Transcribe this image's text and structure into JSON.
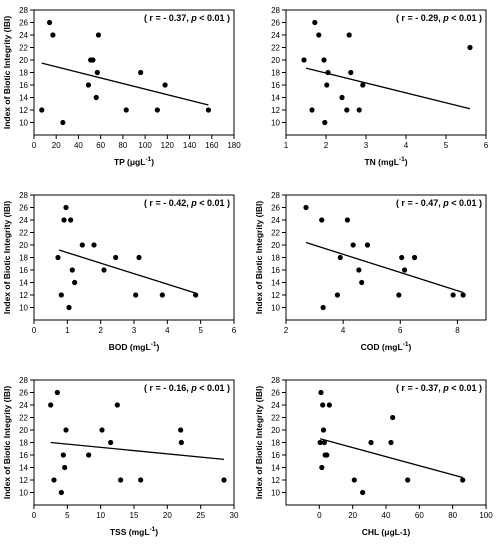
{
  "chart_data": [
    {
      "type": "scatter",
      "xlabel": "TP (μgL",
      "xlabel_sup": "-1",
      "xlabel_tail": ")",
      "ylabel": "Index of Biotic Integrity (IBI)",
      "annotation": {
        "pre": "( r = - 0.37, ",
        "p": "p",
        "post": " < 0.01 )"
      },
      "xlim": [
        0,
        180
      ],
      "ylim": [
        8,
        28
      ],
      "xticks": [
        0,
        20,
        40,
        60,
        80,
        100,
        120,
        140,
        160,
        180
      ],
      "yticks": [
        10,
        12,
        14,
        16,
        18,
        20,
        22,
        24,
        26,
        28
      ],
      "x": [
        7,
        14,
        17,
        26,
        49,
        51,
        53,
        56,
        57,
        58,
        83,
        96,
        111,
        118,
        157
      ],
      "y": [
        12,
        26,
        24,
        10,
        16,
        20,
        20,
        14,
        18,
        24,
        12,
        18,
        12,
        16,
        12
      ],
      "trendline": {
        "x": [
          7,
          157
        ],
        "y": [
          19.5,
          12.8
        ]
      }
    },
    {
      "type": "scatter",
      "xlabel": "TN (mgL",
      "xlabel_sup": "-1",
      "xlabel_tail": ")",
      "ylabel": "",
      "annotation": {
        "pre": "( r = - 0.29, ",
        "p": "p",
        "post": " < 0.01 )"
      },
      "xlim": [
        1,
        6
      ],
      "ylim": [
        8,
        28
      ],
      "xticks": [
        1,
        2,
        3,
        4,
        5,
        6
      ],
      "yticks": [
        10,
        12,
        14,
        16,
        18,
        20,
        22,
        24,
        26,
        28
      ],
      "x": [
        1.45,
        1.65,
        1.72,
        1.82,
        1.95,
        1.97,
        2.02,
        2.05,
        2.4,
        2.52,
        2.58,
        2.62,
        2.83,
        2.92,
        5.6
      ],
      "y": [
        20,
        12,
        26,
        24,
        20,
        10,
        16,
        18,
        14,
        12,
        24,
        18,
        12,
        16,
        22
      ],
      "trendline": {
        "x": [
          1.5,
          5.6
        ],
        "y": [
          18.7,
          12.2
        ]
      }
    },
    {
      "type": "scatter",
      "xlabel": "BOD (mgL",
      "xlabel_sup": "-1",
      "xlabel_tail": ")",
      "ylabel": "Index of Biotic Integrity (IBI)",
      "annotation": {
        "pre": "( r = - 0.42, ",
        "p": "p",
        "post": " < 0.01 )"
      },
      "xlim": [
        0,
        6
      ],
      "ylim": [
        8,
        28
      ],
      "xticks": [
        0,
        1,
        2,
        3,
        4,
        5,
        6
      ],
      "yticks": [
        10,
        12,
        14,
        16,
        18,
        20,
        22,
        24,
        26,
        28
      ],
      "x": [
        0.72,
        0.82,
        0.9,
        0.96,
        1.05,
        1.1,
        1.15,
        1.22,
        1.45,
        1.8,
        2.1,
        2.45,
        3.05,
        3.15,
        3.85,
        4.85
      ],
      "y": [
        18,
        12,
        24,
        26,
        10,
        24,
        16,
        14,
        20,
        20,
        16,
        18,
        12,
        18,
        12,
        12
      ],
      "trendline": {
        "x": [
          0.75,
          4.85
        ],
        "y": [
          19.2,
          12.3
        ]
      }
    },
    {
      "type": "scatter",
      "xlabel": "COD (mgL",
      "xlabel_sup": "-1",
      "xlabel_tail": ")",
      "ylabel": "Index of Biotic Integrity (IBI)",
      "annotation": {
        "pre": "( r = - 0.47, ",
        "p": "p",
        "post": " < 0.01 )"
      },
      "xlim": [
        2,
        9
      ],
      "ylim": [
        8,
        28
      ],
      "xticks": [
        2,
        4,
        6,
        8
      ],
      "yticks": [
        10,
        12,
        14,
        16,
        18,
        20,
        22,
        24,
        26,
        28
      ],
      "x": [
        2.7,
        3.25,
        3.3,
        3.8,
        3.9,
        4.15,
        4.35,
        4.55,
        4.65,
        4.85,
        5.95,
        6.05,
        6.15,
        6.5,
        7.85,
        8.2
      ],
      "y": [
        26,
        24,
        10,
        12,
        18,
        24,
        20,
        16,
        14,
        20,
        12,
        18,
        16,
        18,
        12,
        12
      ],
      "trendline": {
        "x": [
          2.7,
          8.2
        ],
        "y": [
          20.4,
          12.4
        ]
      }
    },
    {
      "type": "scatter",
      "xlabel": "TSS (mgL",
      "xlabel_sup": "-1",
      "xlabel_tail": ")",
      "ylabel": "Index of Biotic Integrity (IBI)",
      "annotation": {
        "pre": "( r = - 0.16, ",
        "p": "p",
        "post": " < 0.01 )"
      },
      "xlim": [
        0,
        30
      ],
      "ylim": [
        8,
        28
      ],
      "xticks": [
        0,
        5,
        10,
        15,
        20,
        25,
        30
      ],
      "yticks": [
        10,
        12,
        14,
        16,
        18,
        20,
        22,
        24,
        26,
        28
      ],
      "x": [
        2.5,
        3.0,
        3.5,
        4.1,
        4.4,
        4.6,
        4.8,
        8.2,
        10.2,
        11.5,
        12.5,
        13.0,
        16.0,
        22.0,
        22.1,
        28.5
      ],
      "y": [
        24,
        12,
        26,
        10,
        16,
        14,
        20,
        16,
        20,
        18,
        24,
        12,
        12,
        20,
        18,
        12
      ],
      "trendline": {
        "x": [
          2.5,
          28.5
        ],
        "y": [
          18.0,
          15.3
        ]
      }
    },
    {
      "type": "scatter",
      "xlabel": "CHL (μgL-1)",
      "xlabel_sup": "",
      "xlabel_tail": "",
      "ylabel": "Index of Biotic Integrity (IBI)",
      "annotation": {
        "pre": "( r = - 0.37, ",
        "p": "p",
        "post": " < 0.01 )"
      },
      "xlim": [
        -20,
        100
      ],
      "ylim": [
        8,
        28
      ],
      "xticks": [
        0,
        20,
        40,
        60,
        80,
        100
      ],
      "yticks": [
        10,
        12,
        14,
        16,
        18,
        20,
        22,
        24,
        26,
        28
      ],
      "x": [
        0.5,
        1.0,
        1.5,
        2.0,
        2.5,
        3.0,
        3.5,
        4.5,
        6.0,
        21.0,
        26.0,
        31.0,
        43.0,
        44.0,
        53.0,
        86.0
      ],
      "y": [
        18,
        26,
        14,
        24,
        20,
        18,
        16,
        16,
        24,
        12,
        10,
        18,
        18,
        22,
        12,
        12
      ],
      "trendline": {
        "x": [
          0.5,
          86.0
        ],
        "y": [
          18.6,
          12.4
        ]
      }
    }
  ]
}
